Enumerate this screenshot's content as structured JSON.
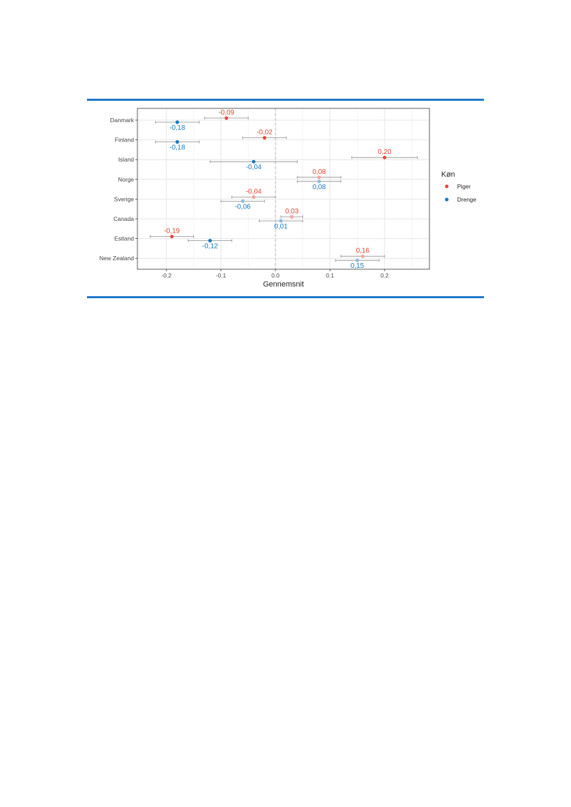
{
  "chart_data": {
    "type": "scatter",
    "title": "",
    "xlabel": "Gennemsnit",
    "ylabel": "",
    "xlim": [
      -0.25,
      0.28
    ],
    "xticks": [
      -0.2,
      -0.1,
      0.0,
      0.1,
      0.2
    ],
    "xtick_labels": [
      "-0.2",
      "-0.1",
      "0.0",
      "0.1",
      "0.2"
    ],
    "grid": true,
    "reference_line_x": 0,
    "categories": [
      "Danmark",
      "Finland",
      "Island",
      "Norge",
      "Sverige",
      "Canada",
      "Estland",
      "New Zealand"
    ],
    "legend": {
      "title": "Køn",
      "position": "right"
    },
    "series": [
      {
        "name": "Piger",
        "color": "#e8483d",
        "values": [
          -0.09,
          -0.02,
          0.2,
          0.08,
          -0.04,
          0.03,
          -0.19,
          0.16
        ],
        "lower": [
          -0.13,
          -0.06,
          0.14,
          0.04,
          -0.08,
          0.01,
          -0.23,
          0.12
        ],
        "upper": [
          -0.05,
          0.02,
          0.26,
          0.12,
          0.0,
          0.05,
          -0.15,
          0.2
        ],
        "labels": [
          "-0,09",
          "-0,02",
          "0,20",
          "0,08",
          "-0,04",
          "0,03",
          "-0,19",
          "0,16"
        ],
        "significant": [
          true,
          true,
          true,
          false,
          false,
          false,
          true,
          false
        ]
      },
      {
        "name": "Drenge",
        "color": "#1877be",
        "values": [
          -0.18,
          -0.18,
          -0.04,
          0.08,
          -0.06,
          0.01,
          -0.12,
          0.15
        ],
        "lower": [
          -0.22,
          -0.22,
          -0.12,
          0.04,
          -0.1,
          -0.03,
          -0.16,
          0.11
        ],
        "upper": [
          -0.14,
          -0.14,
          0.04,
          0.12,
          -0.02,
          0.05,
          -0.08,
          0.19
        ],
        "labels": [
          "-0,18",
          "-0,18",
          "-0,04",
          "0,08",
          "-0,06",
          "0,01",
          "-0,12",
          "0,15"
        ],
        "significant": [
          true,
          true,
          true,
          false,
          false,
          false,
          true,
          false
        ]
      }
    ],
    "nonsignificant_colors": {
      "Piger": "#f3a49d",
      "Drenge": "#8fbbe0"
    },
    "label_colors": {
      "Piger": "#e5432f",
      "Drenge": "#1877be"
    }
  }
}
